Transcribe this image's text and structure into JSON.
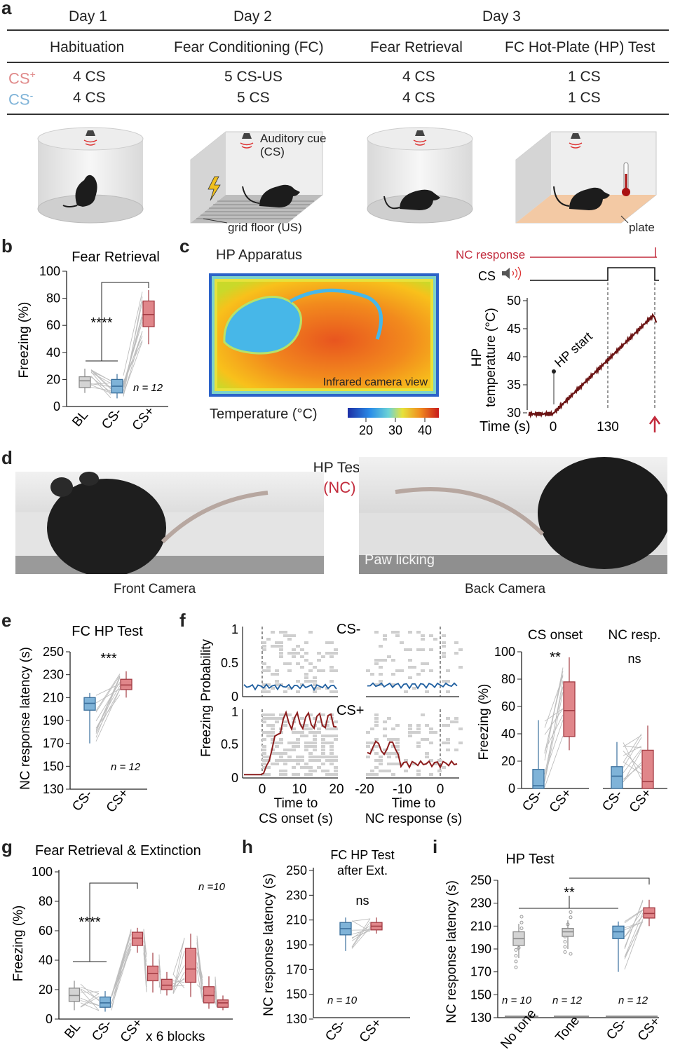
{
  "panel_letters": [
    "a",
    "b",
    "c",
    "d",
    "e",
    "f",
    "g",
    "h",
    "i"
  ],
  "a": {
    "days": [
      "Day 1",
      "Day 2",
      "Day 3"
    ],
    "sessions": [
      "Habituation",
      "Fear Conditioning (FC)",
      "Fear Retrieval",
      "FC Hot-Plate (HP) Test"
    ],
    "rows": [
      {
        "label": "CS",
        "sup": "+",
        "values": [
          "4 CS",
          "5 CS-US",
          "4 CS",
          "1 CS"
        ],
        "color": "#e08a8a"
      },
      {
        "label": "CS",
        "sup": "-",
        "values": [
          "4 CS",
          "5 CS",
          "4 CS",
          "1 CS"
        ],
        "color": "#7fb3d8"
      }
    ],
    "labels": {
      "auditory": "Auditory cue",
      "cs": "(CS)",
      "grid": "grid floor (US)",
      "plate": "plate"
    }
  },
  "b": {
    "title": "Fear Retrieval",
    "ylabel": "Freezing (%)",
    "yticks": [
      "0",
      "20",
      "40",
      "60",
      "80",
      "100"
    ],
    "xticks": [
      "BL",
      "CS-",
      "CS+"
    ],
    "stars": "****",
    "n": "n = 12"
  },
  "c": {
    "title": "HP Apparatus",
    "camera": "Infrared camera view",
    "cbar_label": "Temperature (°C)",
    "cbar_ticks": [
      "20",
      "30",
      "40"
    ],
    "nc_response": "NC response",
    "cs": "CS",
    "ylabel1": "HP",
    "ylabel2": "temperature (°C)",
    "yticks": [
      "30",
      "35",
      "40",
      "45",
      "50"
    ],
    "xticks": [
      "0",
      "130"
    ],
    "xlabel": "Time (s)",
    "annot": "HP start"
  },
  "d": {
    "title": "HP Test",
    "subtitle": "Nociceptive (NC) Response",
    "front": "Front Camera",
    "back": "Back Camera",
    "paw": "Paw licking"
  },
  "e": {
    "title": "FC HP Test",
    "ylabel": "NC response latency (s)",
    "yticks": [
      "130",
      "150",
      "170",
      "190",
      "210",
      "230",
      "250"
    ],
    "xticks": [
      "CS-",
      "CS+"
    ],
    "stars": "***",
    "n": "n = 12"
  },
  "f": {
    "ylabel": "Freezing Probability",
    "yticks": [
      "0",
      "0.5",
      "1"
    ],
    "cs_minus": "CS-",
    "cs_plus": "CS+",
    "xticks_left": [
      "0",
      "10",
      "20"
    ],
    "xticks_right": [
      "-20",
      "-10",
      "0"
    ],
    "xlabel_left1": "Time to",
    "xlabel_left2": "CS onset (s)",
    "xlabel_right1": "Time to",
    "xlabel_right2": "NC response (s)",
    "box_titles": [
      "CS onset",
      "NC resp."
    ],
    "box_ylabel": "Freezing (%)",
    "box_yticks": [
      "0",
      "20",
      "40",
      "60",
      "80",
      "100"
    ],
    "box_xticks": [
      "CS-",
      "CS+"
    ],
    "stars": "**",
    "ns": "ns"
  },
  "g": {
    "title": "Fear Retrieval & Extinction",
    "ylabel": "Freezing (%)",
    "yticks": [
      "0",
      "20",
      "40",
      "60",
      "80",
      "100"
    ],
    "xticks": [
      "BL",
      "CS-",
      "CS+"
    ],
    "xextra": "x 6 blocks",
    "stars": "****",
    "n": "n =10"
  },
  "h": {
    "title1": "FC HP Test",
    "title2": "after Ext.",
    "ylabel": "NC response latency (s)",
    "yticks": [
      "130",
      "150",
      "170",
      "190",
      "210",
      "230",
      "250"
    ],
    "xticks": [
      "CS-",
      "CS+"
    ],
    "ns": "ns",
    "n": "n = 10"
  },
  "i": {
    "title": "HP Test",
    "ylabel": "NC response latency (s)",
    "yticks": [
      "130",
      "150",
      "170",
      "190",
      "210",
      "230",
      "250"
    ],
    "xticks": [
      "No tone",
      "Tone",
      "CS-",
      "CS+"
    ],
    "stars": "**",
    "n": [
      "n = 10",
      "n = 12",
      "n = 12"
    ]
  },
  "chart_data": [
    {
      "panel": "b",
      "type": "box",
      "title": "Fear Retrieval",
      "ylabel": "Freezing (%)",
      "ylim": [
        0,
        100
      ],
      "categories": [
        "BL",
        "CS-",
        "CS+"
      ],
      "boxes": [
        {
          "name": "BL",
          "q1": 14,
          "median": 19,
          "q3": 22,
          "low": 10,
          "high": 28
        },
        {
          "name": "CS-",
          "q1": 10,
          "median": 15,
          "q3": 20,
          "low": 6,
          "high": 24
        },
        {
          "name": "CS+",
          "q1": 59,
          "median": 68,
          "q3": 78,
          "low": 46,
          "high": 86
        }
      ]
    },
    {
      "panel": "e",
      "type": "box",
      "title": "FC HP Test",
      "ylabel": "NC response latency (s)",
      "ylim": [
        130,
        250
      ],
      "categories": [
        "CS-",
        "CS+"
      ],
      "boxes": [
        {
          "name": "CS-",
          "q1": 199,
          "median": 205,
          "q3": 210,
          "low": 170,
          "high": 214
        },
        {
          "name": "CS+",
          "q1": 217,
          "median": 221,
          "q3": 226,
          "low": 210,
          "high": 233
        }
      ]
    },
    {
      "panel": "f",
      "type": "box",
      "ylabel": "Freezing (%)",
      "ylim": [
        0,
        100
      ],
      "groups": [
        "CS onset",
        "NC resp."
      ],
      "boxes": [
        {
          "group": "CS onset",
          "name": "CS-",
          "q1": 0,
          "median": 2,
          "q3": 14,
          "low": 0,
          "high": 50
        },
        {
          "group": "CS onset",
          "name": "CS+",
          "q1": 38,
          "median": 57,
          "q3": 78,
          "low": 28,
          "high": 96
        },
        {
          "group": "NC resp.",
          "name": "CS-",
          "q1": 0,
          "median": 9,
          "q3": 16,
          "low": 0,
          "high": 34
        },
        {
          "group": "NC resp.",
          "name": "CS+",
          "q1": 0,
          "median": 5,
          "q3": 28,
          "low": 0,
          "high": 46
        }
      ]
    },
    {
      "panel": "g",
      "type": "box",
      "title": "Fear Retrieval & Extinction",
      "ylabel": "Freezing (%)",
      "ylim": [
        0,
        100
      ],
      "boxes": [
        {
          "name": "BL",
          "q1": 12,
          "median": 16,
          "q3": 21,
          "low": 6,
          "high": 26
        },
        {
          "name": "CS-",
          "q1": 8,
          "median": 11,
          "q3": 15,
          "low": 5,
          "high": 19
        },
        {
          "name": "block 1",
          "q1": 50,
          "median": 55,
          "q3": 59,
          "low": 45,
          "high": 62
        },
        {
          "name": "block 2",
          "q1": 26,
          "median": 31,
          "q3": 36,
          "low": 18,
          "high": 45
        },
        {
          "name": "block 3",
          "q1": 20,
          "median": 23,
          "q3": 27,
          "low": 16,
          "high": 32
        },
        {
          "name": "block 4",
          "q1": 25,
          "median": 34,
          "q3": 48,
          "low": 15,
          "high": 58
        },
        {
          "name": "block 5",
          "q1": 11,
          "median": 16,
          "q3": 22,
          "low": 7,
          "high": 29
        },
        {
          "name": "block 6",
          "q1": 8,
          "median": 11,
          "q3": 13,
          "low": 6,
          "high": 16
        }
      ]
    },
    {
      "panel": "h",
      "type": "box",
      "title": "FC HP Test after Ext.",
      "ylabel": "NC response latency (s)",
      "ylim": [
        130,
        250
      ],
      "categories": [
        "CS-",
        "CS+"
      ],
      "boxes": [
        {
          "name": "CS-",
          "q1": 198,
          "median": 203,
          "q3": 208,
          "low": 185,
          "high": 212
        },
        {
          "name": "CS+",
          "q1": 202,
          "median": 205,
          "q3": 208,
          "low": 199,
          "high": 212
        }
      ]
    },
    {
      "panel": "i",
      "type": "box",
      "title": "HP Test",
      "ylabel": "NC response latency (s)",
      "ylim": [
        130,
        250
      ],
      "categories": [
        "No tone",
        "Tone",
        "CS-",
        "CS+"
      ],
      "boxes": [
        {
          "name": "No tone",
          "q1": 193,
          "median": 199,
          "q3": 205,
          "low": 182,
          "high": 212
        },
        {
          "name": "Tone",
          "q1": 201,
          "median": 205,
          "q3": 208,
          "low": 190,
          "high": 215
        },
        {
          "name": "CS-",
          "q1": 199,
          "median": 205,
          "q3": 210,
          "low": 170,
          "high": 214
        },
        {
          "name": "CS+",
          "q1": 217,
          "median": 221,
          "q3": 226,
          "low": 210,
          "high": 233
        }
      ]
    }
  ]
}
